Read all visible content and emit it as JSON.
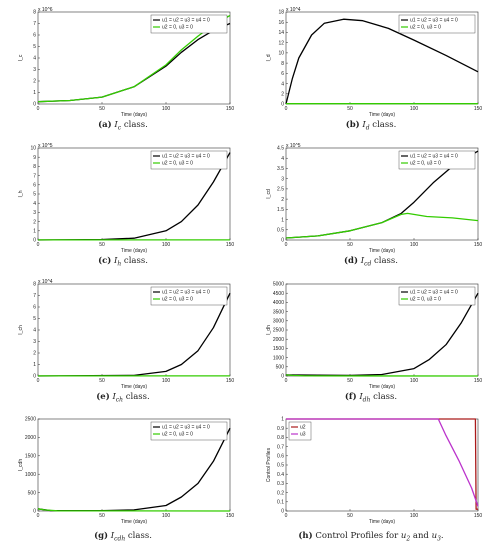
{
  "figure": {
    "captions": [
      {
        "letter": "(a)",
        "main": "I",
        "sub": "c",
        "tail": " class."
      },
      {
        "letter": "(b)",
        "main": "I",
        "sub": "d",
        "tail": " class."
      },
      {
        "letter": "(c)",
        "main": "I",
        "sub": "h",
        "tail": " class."
      },
      {
        "letter": "(d)",
        "main": "I",
        "sub": "cd",
        "tail": " class."
      },
      {
        "letter": "(e)",
        "main": "I",
        "sub": "ch",
        "tail": " class."
      },
      {
        "letter": "(f)",
        "main": "I",
        "sub": "dh",
        "tail": " class."
      },
      {
        "letter": "(g)",
        "main": "I",
        "sub": "cdh",
        "tail": " class."
      },
      {
        "letter": "(h)",
        "main": "Control Profiles for ",
        "sub": "",
        "tail": ""
      }
    ],
    "caption_h_parts": {
      "u2": "u",
      "u2sub": "2",
      "and": " and ",
      "u3": "u",
      "u3sub": "3",
      "end": "."
    }
  },
  "chart_data": [
    {
      "type": "line",
      "ylabel": "I_c",
      "xlabel": "Time (days)",
      "xlim": [
        0,
        150
      ],
      "ylim": [
        0,
        8
      ],
      "exponent": "x 10^6",
      "xticks": [
        0,
        50,
        100,
        150
      ],
      "yticks": [
        0,
        1,
        2,
        3,
        4,
        5,
        6,
        7,
        8
      ],
      "legend": "top-right",
      "series": [
        {
          "name": "u1 = u2 = u3 = u4 = 0",
          "color": "#000000",
          "x": [
            0,
            25,
            50,
            75,
            100,
            112,
            125,
            137,
            150
          ],
          "y": [
            0.2,
            0.3,
            0.6,
            1.5,
            3.3,
            4.5,
            5.6,
            6.4,
            7.0
          ]
        },
        {
          "name": "u2 = 0, u3 = 0",
          "color": "#33cc00",
          "x": [
            0,
            25,
            50,
            75,
            100,
            112,
            125,
            137,
            150
          ],
          "y": [
            0.2,
            0.3,
            0.6,
            1.5,
            3.4,
            4.7,
            5.9,
            6.9,
            7.7
          ]
        }
      ]
    },
    {
      "type": "line",
      "ylabel": "I_d",
      "xlabel": "Time (days)",
      "xlim": [
        0,
        150
      ],
      "ylim": [
        0,
        18
      ],
      "exponent": "x 10^4",
      "xticks": [
        0,
        50,
        100,
        150
      ],
      "yticks": [
        0,
        2,
        4,
        6,
        8,
        10,
        12,
        14,
        16,
        18
      ],
      "legend": "top-right",
      "series": [
        {
          "name": "u1 = u2 = u3 = u4 = 0",
          "color": "#000000",
          "x": [
            0,
            5,
            10,
            20,
            30,
            45,
            60,
            80,
            100,
            125,
            150
          ],
          "y": [
            0,
            5,
            9,
            13.5,
            15.8,
            16.6,
            16.3,
            14.8,
            12.5,
            9.5,
            6.3
          ]
        },
        {
          "name": "u2 = 0, u3 = 0",
          "color": "#33cc00",
          "x": [
            0,
            150
          ],
          "y": [
            0.05,
            0.05
          ]
        }
      ]
    },
    {
      "type": "line",
      "ylabel": "I_h",
      "xlabel": "Time (days)",
      "xlim": [
        0,
        150
      ],
      "ylim": [
        0,
        10
      ],
      "exponent": "x 10^5",
      "xticks": [
        0,
        50,
        100,
        150
      ],
      "yticks": [
        0,
        1,
        2,
        3,
        4,
        5,
        6,
        7,
        8,
        9,
        10
      ],
      "legend": "top-right",
      "series": [
        {
          "name": "u1 = u2 = u3 = u4 = 0",
          "color": "#000000",
          "x": [
            0,
            50,
            75,
            100,
            112,
            125,
            137,
            150
          ],
          "y": [
            0,
            0.05,
            0.2,
            1.0,
            2.0,
            3.8,
            6.3,
            9.5
          ]
        },
        {
          "name": "u2 = 0, u3 = 0",
          "color": "#33cc00",
          "x": [
            0,
            150
          ],
          "y": [
            0.01,
            0.01
          ]
        }
      ]
    },
    {
      "type": "line",
      "ylabel": "I_cd",
      "xlabel": "Time (days)",
      "xlim": [
        0,
        150
      ],
      "ylim": [
        0,
        4.5
      ],
      "exponent": "x 10^5",
      "xticks": [
        0,
        50,
        100,
        150
      ],
      "yticks": [
        0,
        0.5,
        1,
        1.5,
        2,
        2.5,
        3,
        3.5,
        4,
        4.5
      ],
      "legend": "top-right",
      "series": [
        {
          "name": "u1 = u2 = u3 = u4 = 0",
          "color": "#000000",
          "x": [
            0,
            25,
            50,
            75,
            90,
            100,
            115,
            130,
            150
          ],
          "y": [
            0.1,
            0.2,
            0.45,
            0.85,
            1.3,
            1.85,
            2.8,
            3.6,
            4.35
          ]
        },
        {
          "name": "u2 = 0, u3 = 0",
          "color": "#33cc00",
          "x": [
            0,
            25,
            50,
            75,
            90,
            95,
            110,
            130,
            150
          ],
          "y": [
            0.1,
            0.2,
            0.45,
            0.85,
            1.25,
            1.3,
            1.15,
            1.08,
            0.95
          ]
        }
      ]
    },
    {
      "type": "line",
      "ylabel": "I_ch",
      "xlabel": "Time (days)",
      "xlim": [
        0,
        150
      ],
      "ylim": [
        0,
        8
      ],
      "exponent": "x 10^4",
      "xticks": [
        0,
        50,
        100,
        150
      ],
      "yticks": [
        0,
        1,
        2,
        3,
        4,
        5,
        6,
        7,
        8
      ],
      "legend": "top-right",
      "series": [
        {
          "name": "u1 = u2 = u3 = u4 = 0",
          "color": "#000000",
          "x": [
            0,
            75,
            100,
            112,
            125,
            137,
            150
          ],
          "y": [
            0,
            0.05,
            0.4,
            1.0,
            2.2,
            4.2,
            7.2
          ]
        },
        {
          "name": "u2 = 0, u3 = 0",
          "color": "#33cc00",
          "x": [
            0,
            150
          ],
          "y": [
            0.01,
            0.01
          ]
        }
      ]
    },
    {
      "type": "line",
      "ylabel": "I_dh",
      "xlabel": "Time (days)",
      "xlim": [
        0,
        150
      ],
      "ylim": [
        0,
        5000
      ],
      "exponent": "",
      "xticks": [
        0,
        50,
        100,
        150
      ],
      "yticks": [
        0,
        500,
        1000,
        1500,
        2000,
        2500,
        3000,
        3500,
        4000,
        4500,
        5000
      ],
      "legend": "top-right",
      "series": [
        {
          "name": "u1 = u2 = u3 = u4 = 0",
          "color": "#000000",
          "x": [
            0,
            50,
            75,
            100,
            112,
            125,
            137,
            150
          ],
          "y": [
            60,
            30,
            80,
            400,
            900,
            1700,
            2900,
            4500
          ]
        },
        {
          "name": "u2 = 0, u3 = 0",
          "color": "#33cc00",
          "x": [
            0,
            5,
            15,
            150
          ],
          "y": [
            60,
            30,
            5,
            0
          ]
        }
      ]
    },
    {
      "type": "line",
      "ylabel": "I_cdh",
      "xlabel": "Time (days)",
      "xlim": [
        0,
        150
      ],
      "ylim": [
        0,
        2500
      ],
      "exponent": "",
      "xticks": [
        0,
        50,
        100,
        150
      ],
      "yticks": [
        0,
        500,
        1000,
        1500,
        2000,
        2500
      ],
      "legend": "top-right",
      "series": [
        {
          "name": "u1 = u2 = u3 = u4 = 0",
          "color": "#000000",
          "x": [
            0,
            10,
            50,
            75,
            100,
            112,
            125,
            137,
            150
          ],
          "y": [
            60,
            10,
            10,
            30,
            150,
            380,
            750,
            1350,
            2250
          ]
        },
        {
          "name": "u2 = 0, u3 = 0",
          "color": "#33cc00",
          "x": [
            0,
            5,
            15,
            150
          ],
          "y": [
            60,
            30,
            5,
            0
          ]
        }
      ]
    },
    {
      "type": "line",
      "ylabel": "Control Profiles",
      "xlabel": "Time (days)",
      "xlim": [
        0,
        150
      ],
      "ylim": [
        0,
        1
      ],
      "exponent": "",
      "xticks": [
        0,
        50,
        100,
        150
      ],
      "yticks": [
        0,
        0.1,
        0.2,
        0.3,
        0.4,
        0.5,
        0.6,
        0.7,
        0.8,
        0.9,
        1
      ],
      "legend": "top-left",
      "series": [
        {
          "name": "u2",
          "color": "#aa1a1a",
          "x": [
            0,
            148,
            148.5,
            150
          ],
          "y": [
            1,
            1,
            0.02,
            0.02
          ]
        },
        {
          "name": "u3",
          "color": "#bb33cc",
          "x": [
            0,
            119,
            125,
            135,
            145,
            150
          ],
          "y": [
            1,
            1,
            0.82,
            0.55,
            0.25,
            0.05
          ]
        }
      ]
    }
  ]
}
